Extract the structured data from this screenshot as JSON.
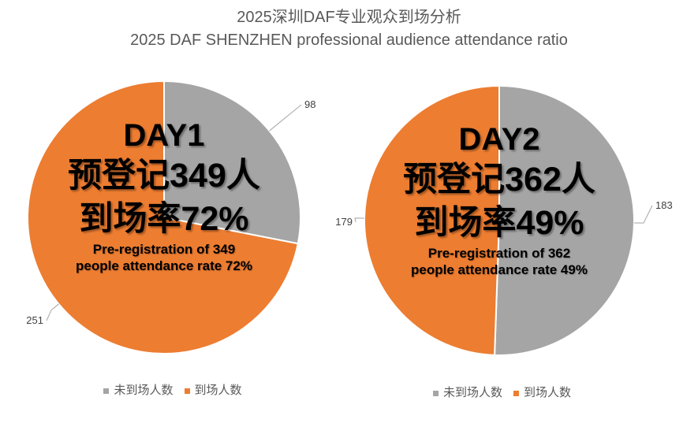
{
  "title": {
    "zh": "2025深圳DAF专业观众到场分析",
    "en": "2025 DAF SHENZHEN professional audience attendance ratio"
  },
  "style": {
    "title_color": "#595959",
    "data_label_color": "#404040",
    "leader_line_color": "#A6A6A6",
    "legend_text_color": "#595959",
    "background": "#FFFFFF",
    "orange": "#ED7D31",
    "gray": "#A5A5A5"
  },
  "chart_data": [
    {
      "type": "pie",
      "name": "DAY1",
      "categories": [
        "未到场人数",
        "到场人数"
      ],
      "values": [
        98,
        251
      ],
      "colors": [
        "#A5A5A5",
        "#ED7D31"
      ],
      "total": 349,
      "attendance_rate_pct": 72,
      "start_angle_deg": 0,
      "direction": "clockwise",
      "data_labels": [
        "98",
        "251"
      ],
      "center_text": {
        "day": "DAY1",
        "zh_line1": "预登记349人",
        "zh_line2": "到场率72%",
        "en_line1": "Pre-registration of 349",
        "en_line2": "people attendance rate 72%"
      },
      "legend": {
        "position": "bottom",
        "items": [
          {
            "label": "未到场人数",
            "color": "#A5A5A5"
          },
          {
            "label": "到场人数",
            "color": "#ED7D31"
          }
        ]
      }
    },
    {
      "type": "pie",
      "name": "DAY2",
      "categories": [
        "未到场人数",
        "到场人数"
      ],
      "values": [
        183,
        179
      ],
      "colors": [
        "#A5A5A5",
        "#ED7D31"
      ],
      "total": 362,
      "attendance_rate_pct": 49,
      "start_angle_deg": 0,
      "direction": "clockwise",
      "data_labels": [
        "183",
        "179"
      ],
      "center_text": {
        "day": "DAY2",
        "zh_line1": "预登记362人",
        "zh_line2": "到场率49%",
        "en_line1": "Pre-registration of 362",
        "en_line2": "people attendance rate 49%"
      },
      "legend": {
        "position": "bottom",
        "items": [
          {
            "label": "未到场人数",
            "color": "#A5A5A5"
          },
          {
            "label": "到场人数",
            "color": "#ED7D31"
          }
        ]
      }
    }
  ]
}
